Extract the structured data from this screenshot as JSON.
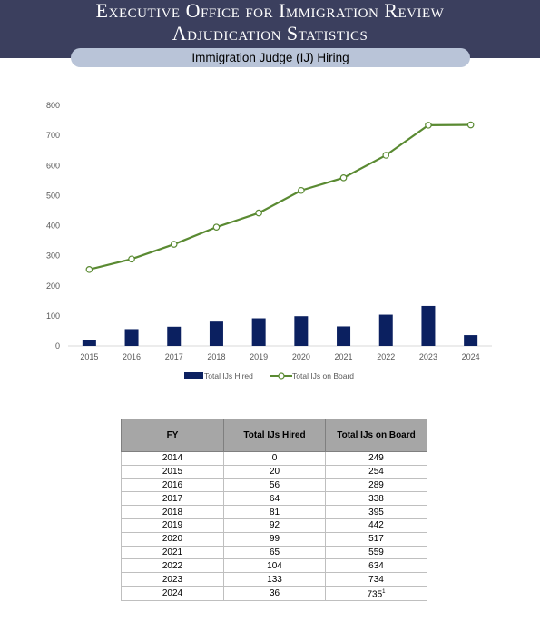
{
  "header": {
    "line1": "Executive Office for Immigration Review",
    "line2": "Adjudication Statistics",
    "subtitle": "Immigration Judge (IJ) Hiring"
  },
  "colors": {
    "bar": "#0b2060",
    "line": "#5a8a32",
    "header_bg": "#3b3f5e",
    "pill_bg": "#b9c4d8"
  },
  "chart_data": {
    "type": "bar+line",
    "categories": [
      "2015",
      "2016",
      "2017",
      "2018",
      "2019",
      "2020",
      "2021",
      "2022",
      "2023",
      "2024"
    ],
    "series": [
      {
        "name": "Total IJs Hired",
        "type": "bar",
        "values": [
          20,
          56,
          64,
          81,
          92,
          99,
          65,
          104,
          133,
          36
        ]
      },
      {
        "name": "Total IJs on Board",
        "type": "line",
        "values": [
          254,
          289,
          338,
          395,
          442,
          517,
          559,
          634,
          734,
          735
        ]
      }
    ],
    "yticks": [
      "0",
      "100",
      "200",
      "300",
      "400",
      "500",
      "600",
      "700",
      "800"
    ],
    "ylim": [
      0,
      800
    ],
    "grid": false,
    "legend_position": "bottom"
  },
  "table": {
    "headers": [
      "FY",
      "Total IJs Hired",
      "Total IJs on Board"
    ],
    "rows": [
      [
        "2014",
        "0",
        "249"
      ],
      [
        "2015",
        "20",
        "254"
      ],
      [
        "2016",
        "56",
        "289"
      ],
      [
        "2017",
        "64",
        "338"
      ],
      [
        "2018",
        "81",
        "395"
      ],
      [
        "2019",
        "92",
        "442"
      ],
      [
        "2020",
        "99",
        "517"
      ],
      [
        "2021",
        "65",
        "559"
      ],
      [
        "2022",
        "104",
        "634"
      ],
      [
        "2023",
        "133",
        "734"
      ],
      [
        "2024",
        "36",
        "735"
      ]
    ],
    "footnote_marker": "1"
  }
}
